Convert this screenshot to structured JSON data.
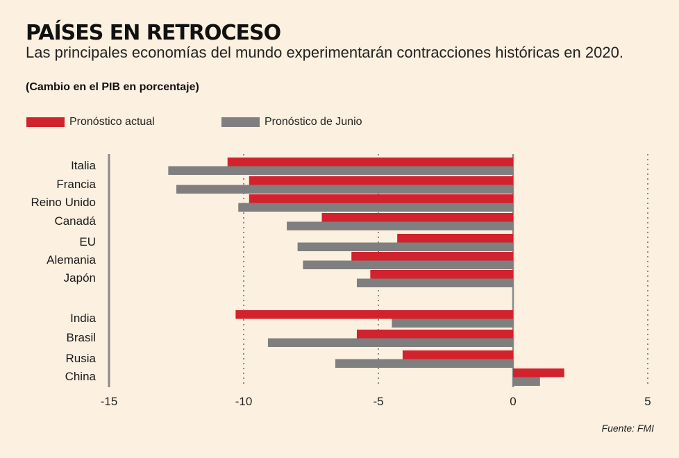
{
  "title": "PAÍSES EN RETROCESO",
  "subtitle": "Las principales economías del mundo experimentarán contracciones históricas en 2020.",
  "units_note": "(Cambio en el PIB en porcentaje)",
  "source": "Fuente: FMI",
  "colors": {
    "actual": "#d1222e",
    "june": "#7f7f7f",
    "background": "#fcf0e0"
  },
  "chart_data": {
    "type": "bar",
    "orientation": "horizontal",
    "categories": [
      "Italia",
      "Francia",
      "Reino Unido",
      "Canadá",
      "EU",
      "Alemania",
      "Japón",
      "India",
      "Brasil",
      "Rusia",
      "China"
    ],
    "series": [
      {
        "name": "Pronóstico actual",
        "values": [
          -10.6,
          -9.8,
          -9.8,
          -7.1,
          -4.3,
          -6.0,
          -5.3,
          -10.3,
          -5.8,
          -4.1,
          1.9
        ]
      },
      {
        "name": "Pronóstico de Junio",
        "values": [
          -12.8,
          -12.5,
          -10.2,
          -8.4,
          -8.0,
          -7.8,
          -5.8,
          -4.5,
          -9.1,
          -6.6,
          1.0
        ]
      }
    ],
    "xlim": [
      -15,
      5
    ],
    "xticks": [
      "-15",
      "-10",
      "-5",
      "0",
      "5"
    ],
    "grid": true,
    "legend": "top-left"
  }
}
